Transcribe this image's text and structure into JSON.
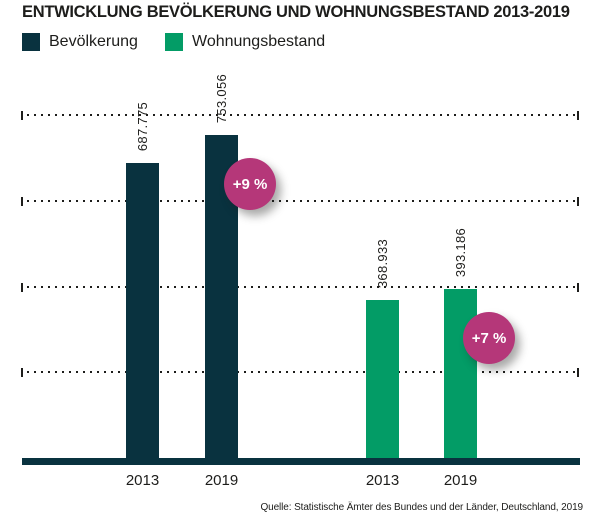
{
  "title": "ENTWICKLUNG BEVÖLKERUNG UND WOHNUNGSBESTAND 2013-2019",
  "legend": {
    "items": [
      {
        "id": "bevoelkerung",
        "label": "Bevölkerung",
        "color": "#09323F"
      },
      {
        "id": "wohnungsbestand",
        "label": "Wohnungsbestand",
        "color": "#039C66"
      }
    ]
  },
  "source_note": "Quelle: Statistische Ämter des Bundes und der Länder, Deutschland, 2019",
  "colors": {
    "text": "#1D1D1B",
    "axis": "#09323F",
    "badge": "#B53779",
    "grid": "#1D1D1B",
    "background": "#FFFFFF"
  },
  "chart_data": {
    "type": "bar",
    "title": "ENTWICKLUNG BEVÖLKERUNG UND WOHNUNGSBESTAND 2013-2019",
    "categories": [
      "2013",
      "2019"
    ],
    "series": [
      {
        "name": "Bevölkerung",
        "color": "#09323F",
        "values": [
          687775,
          753056
        ],
        "value_labels": [
          "687.775",
          "753.056"
        ],
        "change_badge": {
          "text": "+9 %",
          "at_category": "2019"
        }
      },
      {
        "name": "Wohnungsbestand",
        "color": "#039C66",
        "values": [
          368933,
          393186
        ],
        "value_labels": [
          "368.933",
          "393.186"
        ],
        "change_badge": {
          "text": "+7 %",
          "at_category": "2019"
        }
      }
    ],
    "ylim": [
      0,
      800000
    ],
    "grid_step": 200000,
    "grid_style": "dotted-horizontal-with-end-ticks",
    "value_label_rotation": -90,
    "legend_position": "top-left",
    "badge_color": "#B53779",
    "axis_color": "#09323F",
    "text_color": "#1D1D1B",
    "xlabel": "",
    "ylabel": ""
  }
}
